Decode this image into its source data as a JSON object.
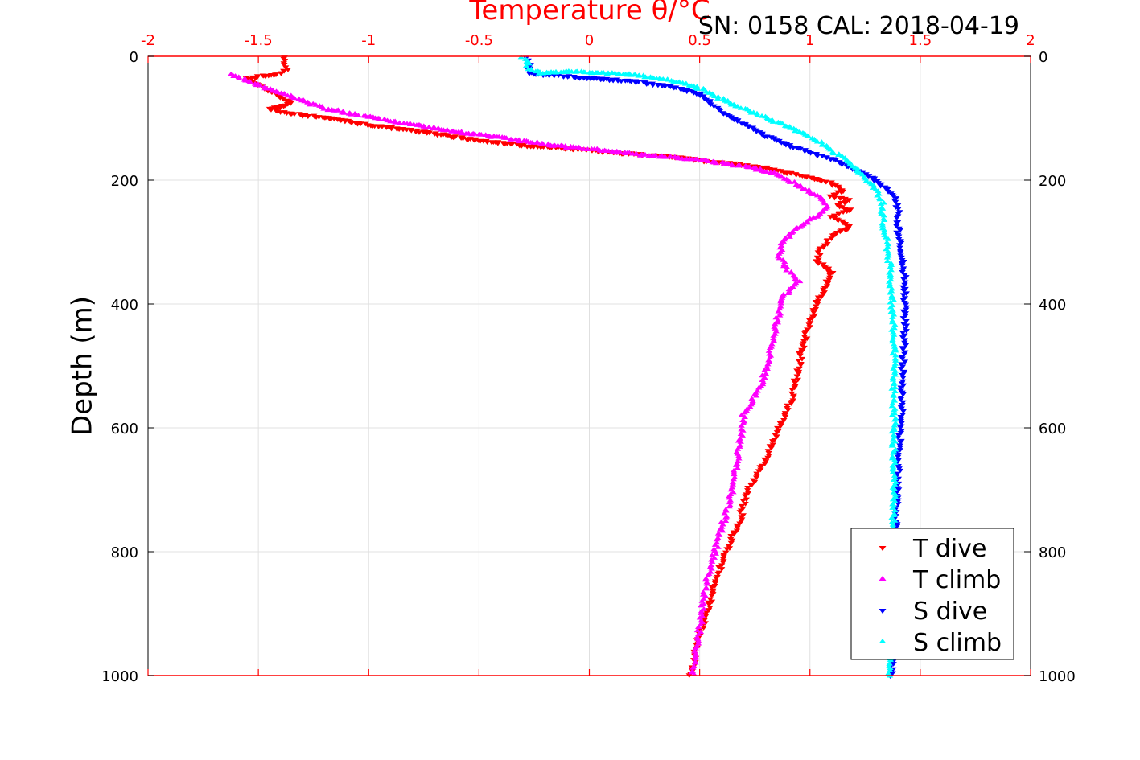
{
  "chart_data": {
    "type": "scatter",
    "title": "",
    "xlabel": "Temperature θ/°C",
    "ylabel": "Depth (m)",
    "annotation": "SN: 0158  CAL: 2018-04-19",
    "xlim": [
      -2,
      2
    ],
    "ylim": [
      1000,
      0
    ],
    "xticks": [
      -2,
      -1.5,
      -1,
      -0.5,
      0,
      0.5,
      1,
      1.5,
      2
    ],
    "xtick_labels": [
      "-2",
      "-1.5",
      "-1",
      "-0.5",
      "0",
      "0.5",
      "1",
      "1.5",
      "2"
    ],
    "yticks": [
      0,
      200,
      400,
      600,
      800,
      1000
    ],
    "ytick_labels": [
      "0",
      "200",
      "400",
      "600",
      "800",
      "1000"
    ],
    "grid": true,
    "legend_position": "bottom-right",
    "colors": {
      "axis_top": "#ff0000",
      "grid": "#e0e0e0"
    },
    "series": [
      {
        "name": "T dive",
        "marker": "triangle-down",
        "color": "#ff0000",
        "points": [
          [
            -1.38,
            2
          ],
          [
            -1.38,
            10
          ],
          [
            -1.37,
            20
          ],
          [
            -1.4,
            28
          ],
          [
            -1.55,
            35
          ],
          [
            -1.5,
            45
          ],
          [
            -1.45,
            55
          ],
          [
            -1.4,
            65
          ],
          [
            -1.35,
            75
          ],
          [
            -1.45,
            85
          ],
          [
            -1.3,
            95
          ],
          [
            -1.15,
            100
          ],
          [
            -1.05,
            108
          ],
          [
            -0.9,
            115
          ],
          [
            -0.75,
            122
          ],
          [
            -0.6,
            130
          ],
          [
            -0.45,
            138
          ],
          [
            -0.25,
            145
          ],
          [
            -0.05,
            150
          ],
          [
            0.1,
            155
          ],
          [
            0.3,
            160
          ],
          [
            0.45,
            165
          ],
          [
            0.55,
            170
          ],
          [
            0.7,
            175
          ],
          [
            0.8,
            180
          ],
          [
            0.9,
            188
          ],
          [
            1.0,
            195
          ],
          [
            1.1,
            205
          ],
          [
            1.15,
            215
          ],
          [
            1.1,
            225
          ],
          [
            1.18,
            232
          ],
          [
            1.12,
            240
          ],
          [
            1.18,
            248
          ],
          [
            1.1,
            258
          ],
          [
            1.15,
            268
          ],
          [
            1.18,
            275
          ],
          [
            1.1,
            290
          ],
          [
            1.05,
            310
          ],
          [
            1.03,
            330
          ],
          [
            1.1,
            350
          ],
          [
            1.07,
            370
          ],
          [
            1.03,
            400
          ],
          [
            1.0,
            430
          ],
          [
            0.96,
            480
          ],
          [
            0.92,
            550
          ],
          [
            0.86,
            600
          ],
          [
            0.8,
            650
          ],
          [
            0.72,
            700
          ],
          [
            0.68,
            750
          ],
          [
            0.62,
            800
          ],
          [
            0.57,
            850
          ],
          [
            0.53,
            900
          ],
          [
            0.49,
            950
          ],
          [
            0.46,
            1000
          ]
        ]
      },
      {
        "name": "T climb",
        "marker": "triangle-up",
        "color": "#ff00ff",
        "points": [
          [
            -1.62,
            30
          ],
          [
            -1.55,
            40
          ],
          [
            -1.48,
            50
          ],
          [
            -1.4,
            60
          ],
          [
            -1.3,
            72
          ],
          [
            -1.2,
            85
          ],
          [
            -1.05,
            95
          ],
          [
            -0.85,
            108
          ],
          [
            -0.65,
            120
          ],
          [
            -0.4,
            132
          ],
          [
            -0.15,
            145
          ],
          [
            0.05,
            152
          ],
          [
            0.25,
            160
          ],
          [
            0.5,
            168
          ],
          [
            0.7,
            178
          ],
          [
            0.85,
            190
          ],
          [
            0.95,
            210
          ],
          [
            1.05,
            230
          ],
          [
            1.08,
            245
          ],
          [
            1.0,
            265
          ],
          [
            0.92,
            285
          ],
          [
            0.88,
            300
          ],
          [
            0.86,
            320
          ],
          [
            0.9,
            345
          ],
          [
            0.95,
            365
          ],
          [
            0.87,
            390
          ],
          [
            0.85,
            430
          ],
          [
            0.82,
            480
          ],
          [
            0.78,
            530
          ],
          [
            0.7,
            580
          ],
          [
            0.67,
            650
          ],
          [
            0.65,
            700
          ],
          [
            0.61,
            750
          ],
          [
            0.57,
            800
          ],
          [
            0.53,
            850
          ],
          [
            0.51,
            900
          ],
          [
            0.49,
            950
          ],
          [
            0.47,
            1000
          ]
        ]
      },
      {
        "name": "S dive",
        "marker": "triangle-down",
        "color": "#0000ff",
        "points": [
          [
            -0.28,
            2
          ],
          [
            -0.27,
            15
          ],
          [
            -0.27,
            28
          ],
          [
            -0.1,
            32
          ],
          [
            0.05,
            36
          ],
          [
            0.2,
            40
          ],
          [
            0.4,
            50
          ],
          [
            0.5,
            60
          ],
          [
            0.55,
            75
          ],
          [
            0.6,
            90
          ],
          [
            0.68,
            105
          ],
          [
            0.78,
            125
          ],
          [
            0.88,
            140
          ],
          [
            1.0,
            155
          ],
          [
            1.1,
            165
          ],
          [
            1.18,
            178
          ],
          [
            1.25,
            190
          ],
          [
            1.32,
            205
          ],
          [
            1.38,
            225
          ],
          [
            1.4,
            250
          ],
          [
            1.4,
            280
          ],
          [
            1.42,
            320
          ],
          [
            1.43,
            360
          ],
          [
            1.43,
            400
          ],
          [
            1.43,
            450
          ],
          [
            1.42,
            500
          ],
          [
            1.42,
            550
          ],
          [
            1.41,
            600
          ],
          [
            1.4,
            650
          ],
          [
            1.4,
            700
          ],
          [
            1.39,
            750
          ],
          [
            1.39,
            800
          ],
          [
            1.38,
            850
          ],
          [
            1.38,
            900
          ],
          [
            1.37,
            950
          ],
          [
            1.37,
            1000
          ]
        ]
      },
      {
        "name": "S climb",
        "marker": "triangle-up",
        "color": "#00ffff",
        "points": [
          [
            -0.3,
            2
          ],
          [
            -0.28,
            10
          ],
          [
            -0.28,
            20
          ],
          [
            -0.22,
            28
          ],
          [
            -0.1,
            25
          ],
          [
            0.05,
            27
          ],
          [
            0.2,
            30
          ],
          [
            0.4,
            42
          ],
          [
            0.52,
            55
          ],
          [
            0.6,
            70
          ],
          [
            0.7,
            85
          ],
          [
            0.8,
            100
          ],
          [
            0.9,
            115
          ],
          [
            1.0,
            130
          ],
          [
            1.08,
            148
          ],
          [
            1.15,
            165
          ],
          [
            1.2,
            180
          ],
          [
            1.25,
            195
          ],
          [
            1.3,
            215
          ],
          [
            1.33,
            240
          ],
          [
            1.33,
            270
          ],
          [
            1.35,
            300
          ],
          [
            1.36,
            330
          ],
          [
            1.37,
            380
          ],
          [
            1.38,
            450
          ],
          [
            1.38,
            500
          ],
          [
            1.38,
            550
          ],
          [
            1.38,
            600
          ],
          [
            1.38,
            650
          ],
          [
            1.38,
            700
          ],
          [
            1.38,
            750
          ],
          [
            1.38,
            800
          ],
          [
            1.37,
            850
          ],
          [
            1.37,
            900
          ],
          [
            1.37,
            950
          ],
          [
            1.36,
            1000
          ]
        ]
      }
    ]
  }
}
